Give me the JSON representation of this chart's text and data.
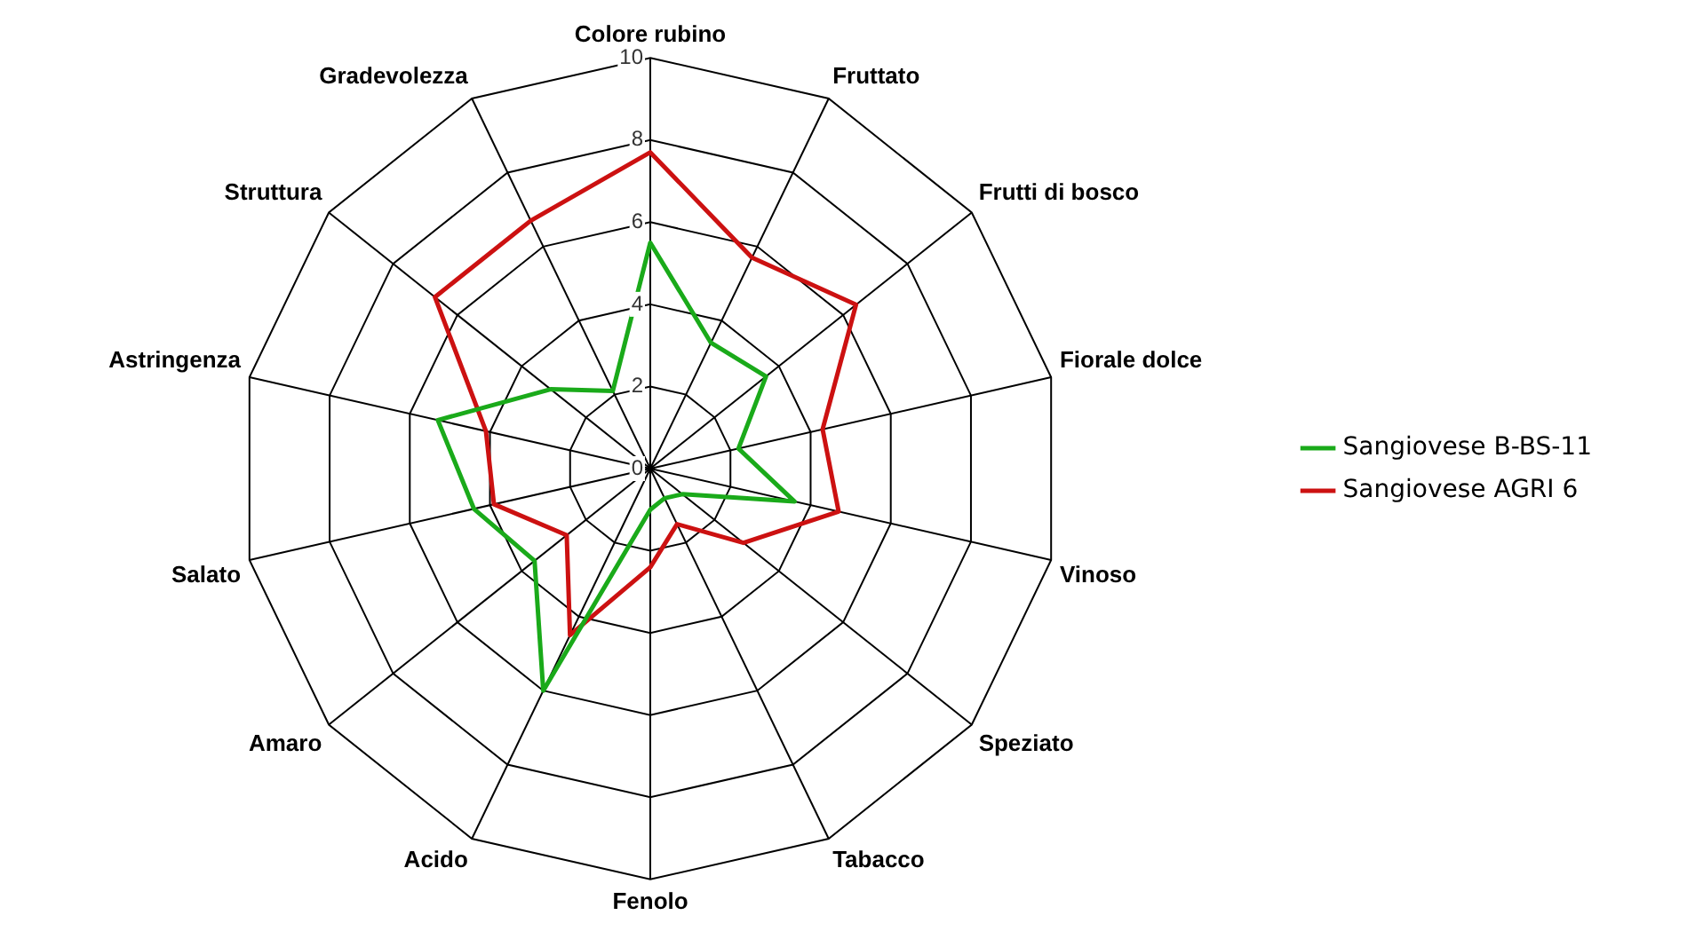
{
  "chart_data": {
    "type": "radar",
    "categories": [
      "Colore rubino",
      "Fruttato",
      "Frutti di bosco",
      "Fiorale dolce",
      "Vinoso",
      "Speziato",
      "Tabacco",
      "Fenolo",
      "Acido",
      "Amaro",
      "Salato",
      "Astringenza",
      "Struttura",
      "Gradevolezza"
    ],
    "series": [
      {
        "name": "Sangiovese B-BS-11",
        "color": "#1aaa1a",
        "values": [
          5.5,
          3.4,
          3.6,
          2.2,
          3.6,
          1.0,
          0.8,
          1.0,
          6.0,
          3.6,
          4.4,
          5.3,
          3.1,
          2.1
        ]
      },
      {
        "name": "Sangiovese AGRI 6",
        "color": "#cc1111",
        "values": [
          7.7,
          5.7,
          6.4,
          4.3,
          4.7,
          2.9,
          1.5,
          2.4,
          4.5,
          2.6,
          3.9,
          4.1,
          6.7,
          6.7
        ]
      }
    ],
    "ylim": [
      0,
      10
    ],
    "yticks": [
      0,
      2,
      4,
      6,
      8,
      10
    ],
    "grid": true,
    "legend": "right",
    "marker": "none",
    "line_style": "solid"
  }
}
